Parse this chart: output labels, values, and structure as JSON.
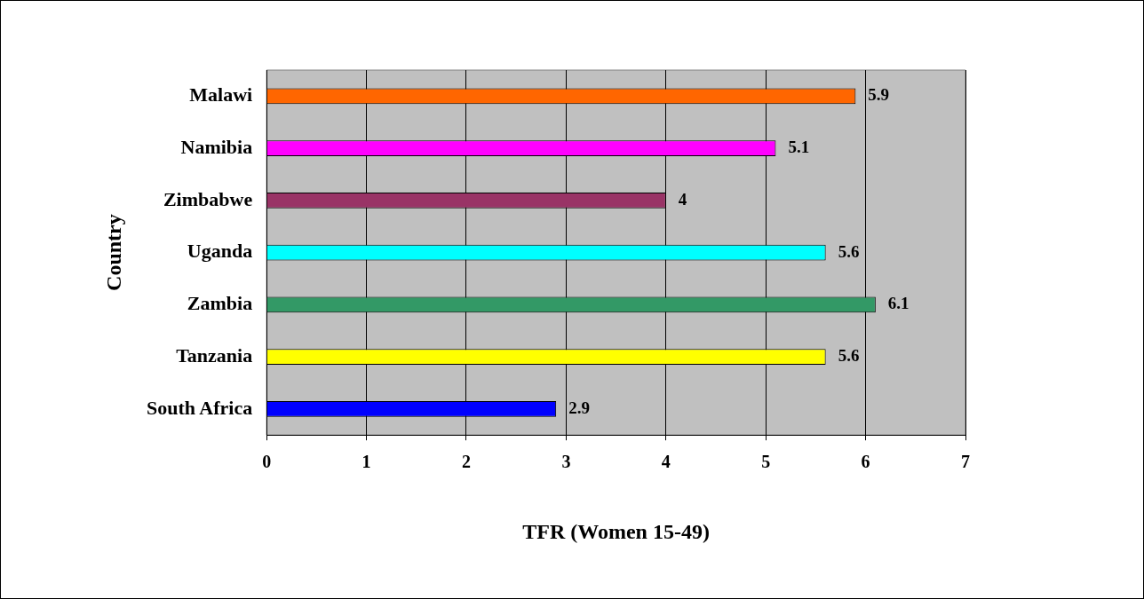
{
  "chart_data": {
    "type": "bar",
    "orientation": "horizontal",
    "xlabel": "TFR (Women 15-49)",
    "ylabel": "Country",
    "categories": [
      "Malawi",
      "Namibia",
      "Zimbabwe",
      "Uganda",
      "Zambia",
      "Tanzania",
      "South Africa"
    ],
    "values": [
      5.9,
      5.1,
      4,
      5.6,
      6.1,
      5.6,
      2.9
    ],
    "colors": [
      "#ff6600",
      "#ff00ff",
      "#993366",
      "#00ffff",
      "#339966",
      "#ffff00",
      "#0000ff"
    ],
    "xlim": [
      0,
      7
    ],
    "xticks": [
      0,
      1,
      2,
      3,
      4,
      5,
      6,
      7
    ],
    "grid": "x",
    "data_labels": true,
    "legend": false
  }
}
